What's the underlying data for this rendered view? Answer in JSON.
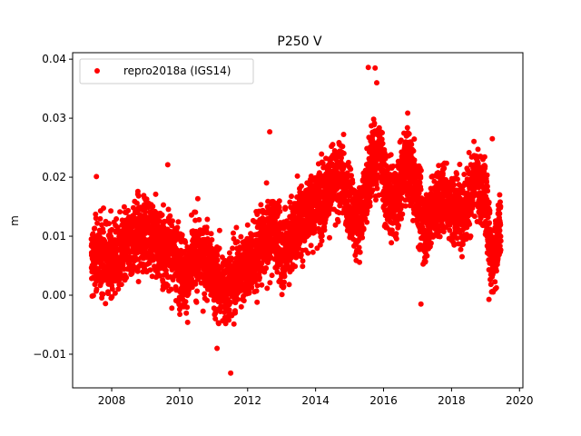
{
  "chart_data": {
    "type": "scatter",
    "title": "P250 V",
    "xlabel": "",
    "ylabel": "m",
    "xlim": [
      2006.85,
      2020.1
    ],
    "ylim": [
      -0.0157,
      0.0411
    ],
    "x_ticks": [
      2008,
      2010,
      2012,
      2014,
      2016,
      2018,
      2020
    ],
    "x_tick_labels": [
      "2008",
      "2010",
      "2012",
      "2014",
      "2016",
      "2018",
      "2020"
    ],
    "y_ticks": [
      -0.01,
      0.0,
      0.01,
      0.02,
      0.03,
      0.04
    ],
    "y_tick_labels": [
      "−0.01",
      "0.00",
      "0.01",
      "0.02",
      "0.03",
      "0.04"
    ],
    "grid": false,
    "legend_position": "top-left",
    "series": [
      {
        "name": "repro2018a (IGS14)",
        "color": "#ff0000",
        "marker": "circle",
        "trend": [
          [
            2007.4,
            0.0055
          ],
          [
            2007.6,
            0.007
          ],
          [
            2007.9,
            0.006
          ],
          [
            2008.2,
            0.006
          ],
          [
            2008.5,
            0.009
          ],
          [
            2008.8,
            0.01
          ],
          [
            2009.1,
            0.011
          ],
          [
            2009.4,
            0.0085
          ],
          [
            2009.7,
            0.008
          ],
          [
            2010.0,
            0.005
          ],
          [
            2010.2,
            0.003
          ],
          [
            2010.5,
            0.007
          ],
          [
            2010.8,
            0.006
          ],
          [
            2011.0,
            0.003
          ],
          [
            2011.3,
            0.001
          ],
          [
            2011.6,
            0.003
          ],
          [
            2011.9,
            0.005
          ],
          [
            2012.2,
            0.006
          ],
          [
            2012.5,
            0.009
          ],
          [
            2012.8,
            0.011
          ],
          [
            2013.0,
            0.007
          ],
          [
            2013.3,
            0.01
          ],
          [
            2013.6,
            0.013
          ],
          [
            2013.9,
            0.015
          ],
          [
            2014.2,
            0.0165
          ],
          [
            2014.5,
            0.019
          ],
          [
            2014.8,
            0.0195
          ],
          [
            2015.0,
            0.015
          ],
          [
            2015.3,
            0.012
          ],
          [
            2015.6,
            0.022
          ],
          [
            2015.9,
            0.024
          ],
          [
            2016.1,
            0.017
          ],
          [
            2016.4,
            0.016
          ],
          [
            2016.7,
            0.023
          ],
          [
            2017.0,
            0.017
          ],
          [
            2017.2,
            0.011
          ],
          [
            2017.5,
            0.015
          ],
          [
            2017.8,
            0.017
          ],
          [
            2018.1,
            0.014
          ],
          [
            2018.4,
            0.015
          ],
          [
            2018.7,
            0.019
          ],
          [
            2019.0,
            0.017
          ],
          [
            2019.2,
            0.005
          ],
          [
            2019.45,
            0.012
          ]
        ],
        "notable_points": [
          [
            2007.55,
            0.0201
          ],
          [
            2009.65,
            0.0221
          ],
          [
            2011.5,
            -0.0132
          ],
          [
            2011.1,
            -0.009
          ],
          [
            2012.65,
            0.0277
          ],
          [
            2015.55,
            0.0386
          ],
          [
            2015.75,
            0.0385
          ],
          [
            2015.8,
            0.036
          ],
          [
            2017.1,
            -0.0015
          ],
          [
            2019.1,
            -0.0007
          ],
          [
            2019.2,
            0.0265
          ],
          [
            2016.05,
            0.012
          ]
        ],
        "noise_sd": 0.004,
        "samples_per_year": 420
      }
    ]
  }
}
